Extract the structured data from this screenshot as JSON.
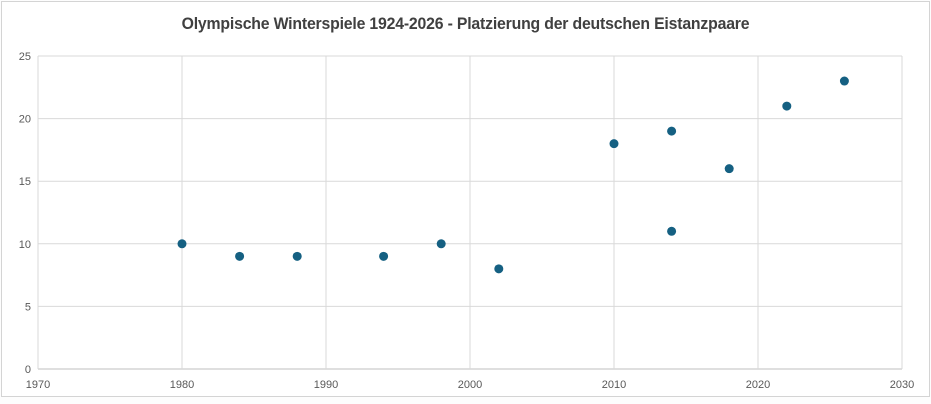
{
  "chart_data": {
    "type": "scatter",
    "title": "Olympische Winterspiele 1924-2026 - Platzierung der deutschen Eistanzpaare",
    "points": [
      {
        "x": 1980,
        "y": 10
      },
      {
        "x": 1984,
        "y": 9
      },
      {
        "x": 1988,
        "y": 9
      },
      {
        "x": 1994,
        "y": 9
      },
      {
        "x": 1998,
        "y": 10
      },
      {
        "x": 2002,
        "y": 8
      },
      {
        "x": 2010,
        "y": 18
      },
      {
        "x": 2014,
        "y": 11
      },
      {
        "x": 2014,
        "y": 19
      },
      {
        "x": 2018,
        "y": 16
      },
      {
        "x": 2022,
        "y": 21
      },
      {
        "x": 2026,
        "y": 23
      }
    ],
    "xlabel": "",
    "ylabel": "",
    "xlim": [
      1970,
      2030
    ],
    "ylim": [
      0,
      25
    ],
    "x_ticks": [
      1970,
      1980,
      1990,
      2000,
      2010,
      2020,
      2030
    ],
    "y_ticks": [
      0,
      5,
      10,
      15,
      20,
      25
    ],
    "grid": true,
    "legend": "none",
    "marker_color": "#156082",
    "grid_color": "#d9d9d9",
    "axis_line_color": "#bfbfbf",
    "tick_label_color": "#595959",
    "title_color": "#404040"
  }
}
